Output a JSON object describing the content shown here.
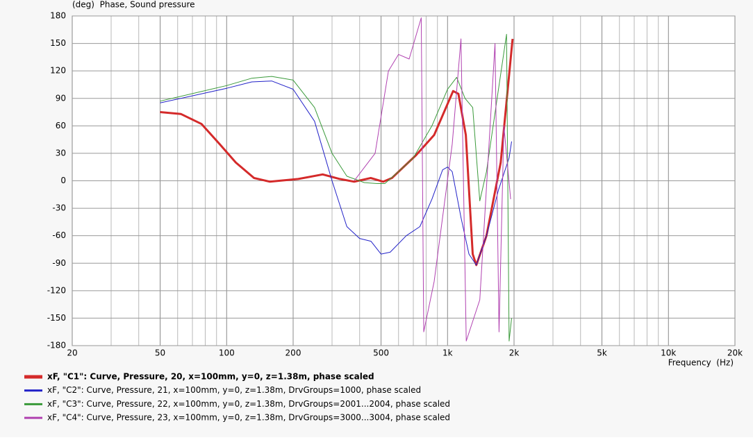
{
  "chart_data": {
    "type": "line",
    "y_label": "(deg)  Phase, Sound pressure",
    "x_label": "Frequency  (Hz)",
    "xscale": "log",
    "xlim": [
      20,
      20000
    ],
    "xticks": [
      20,
      50,
      100,
      200,
      500,
      {
        "value": 1000,
        "label": "1k"
      },
      {
        "value": 2000,
        "label": "2k"
      },
      {
        "value": 5000,
        "label": "5k"
      },
      {
        "value": 10000,
        "label": "10k"
      },
      {
        "value": 20000,
        "label": "20k"
      }
    ],
    "xminor_ticks": [
      30,
      40,
      60,
      70,
      80,
      90,
      300,
      400,
      600,
      700,
      800,
      900,
      3000,
      4000,
      6000,
      7000,
      8000,
      9000
    ],
    "ylim": [
      -180,
      180
    ],
    "yticks": [
      180,
      150,
      120,
      90,
      60,
      30,
      0,
      -30,
      -60,
      -90,
      -120,
      -150,
      -180
    ],
    "grid": true,
    "series": [
      {
        "name": "xF, \"C1\": Curve, Pressure, 20, x=100mm, y=0, z=1.38m, phase scaled",
        "color": "#d42a2a",
        "line_width": 3,
        "x": [
          50,
          62,
          77,
          93,
          110,
          133,
          157,
          211,
          272,
          325,
          378,
          449,
          512,
          560,
          720,
          870,
          1060,
          1120,
          1210,
          1300,
          1350,
          1500,
          1740,
          1970
        ],
        "values": [
          75,
          73,
          62,
          40,
          20,
          3,
          -1,
          2,
          7,
          2,
          -1,
          3,
          -1,
          3,
          28,
          50,
          98,
          95,
          50,
          -80,
          -92,
          -60,
          20,
          155
        ]
      },
      {
        "name": "xF, \"C2\": Curve, Pressure, 21, x=100mm, y=0, z=1.38m, DrvGroups=1000, phase scaled",
        "color": "#2020c8",
        "line_width": 1,
        "x": [
          50,
          100,
          130,
          160,
          200,
          250,
          300,
          350,
          400,
          450,
          500,
          550,
          650,
          750,
          850,
          950,
          1000,
          1050,
          1150,
          1250,
          1350,
          1500,
          1700,
          1900,
          1950
        ],
        "values": [
          85,
          101,
          108,
          109,
          100,
          65,
          0,
          -50,
          -63,
          -66,
          -80,
          -78,
          -60,
          -50,
          -20,
          12,
          15,
          10,
          -40,
          -80,
          -92,
          -60,
          -10,
          25,
          43
        ]
      },
      {
        "name": "xF, \"C3\": Curve, Pressure, 22, x=100mm, y=0, z=1.38m, DrvGroups=2001...2004, phase scaled",
        "color": "#3a9a3a",
        "line_width": 1,
        "x": [
          50,
          100,
          130,
          160,
          200,
          250,
          300,
          350,
          420,
          480,
          520,
          600,
          700,
          850,
          1000,
          1100,
          1200,
          1300,
          1400,
          1500,
          1700,
          1850,
          1900,
          1950
        ],
        "values": [
          87,
          104,
          112,
          114,
          110,
          80,
          30,
          5,
          -2,
          -3,
          -3,
          10,
          25,
          60,
          100,
          113,
          90,
          80,
          -22,
          10,
          100,
          160,
          -175,
          -150
        ]
      },
      {
        "name": "xF, \"C4\": Curve, Pressure, 23, x=100mm, y=0, z=1.38m, DrvGroups=3000...3004, phase scaled",
        "color": "#b040b0",
        "line_width": 1,
        "x": [
          378,
          470,
          540,
          600,
          670,
          760,
          780,
          870,
          1050,
          1150,
          1215,
          1400,
          1640,
          1710,
          1800,
          1930
        ],
        "values": [
          0,
          30,
          120,
          138,
          133,
          178,
          -165,
          -110,
          40,
          155,
          -175,
          -130,
          150,
          -165,
          60,
          -20
        ]
      }
    ]
  }
}
